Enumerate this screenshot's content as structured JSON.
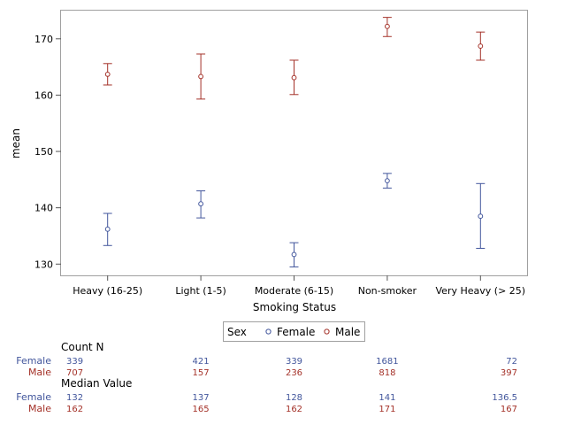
{
  "chart_data": {
    "type": "scatter",
    "subtype": "mean-with-error-bars",
    "title": "",
    "xlabel": "Smoking Status",
    "ylabel": "mean",
    "ylim": [
      128,
      175
    ],
    "yticks": [
      130,
      140,
      150,
      160,
      170
    ],
    "categories": [
      "Heavy (16-25)",
      "Light (1-5)",
      "Moderate (6-15)",
      "Non-smoker",
      "Very Heavy (> 25)"
    ],
    "series": [
      {
        "name": "Female",
        "color": "#42569c",
        "mean": [
          136.2,
          140.7,
          131.7,
          144.8,
          138.5
        ],
        "lower": [
          133.3,
          138.2,
          129.5,
          143.5,
          132.8
        ],
        "upper": [
          139.0,
          143.0,
          133.8,
          146.1,
          144.3
        ]
      },
      {
        "name": "Male",
        "color": "#a43128",
        "mean": [
          163.7,
          163.3,
          163.1,
          172.2,
          168.7
        ],
        "lower": [
          161.8,
          159.3,
          160.1,
          170.4,
          166.2
        ],
        "upper": [
          165.6,
          167.3,
          166.2,
          173.8,
          171.2
        ]
      }
    ],
    "legend": {
      "title": "Sex",
      "position": "bottom-center"
    },
    "table": {
      "stats": [
        {
          "title": "Count N",
          "rows": [
            {
              "label": "Female",
              "values": [
                "339",
                "421",
                "339",
                "1681",
                "72"
              ]
            },
            {
              "label": "Male",
              "values": [
                "707",
                "157",
                "236",
                "818",
                "397"
              ]
            }
          ]
        },
        {
          "title": "Median Value",
          "rows": [
            {
              "label": "Female",
              "values": [
                "132",
                "137",
                "128",
                "141",
                "136.5"
              ]
            },
            {
              "label": "Male",
              "values": [
                "162",
                "165",
                "162",
                "171",
                "167"
              ]
            }
          ]
        }
      ]
    }
  }
}
